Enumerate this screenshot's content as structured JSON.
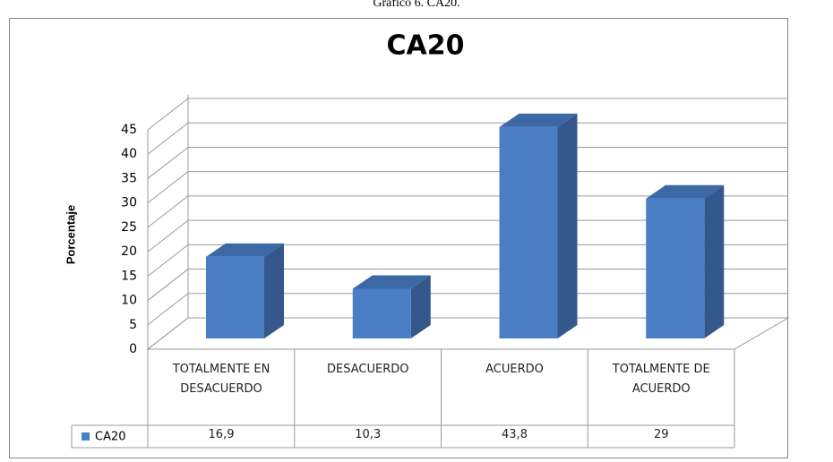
{
  "chart_data": {
    "type": "bar3d",
    "caption": "Gráfico 6. CA20.",
    "title": "CA20",
    "y_label": "Porcentaje",
    "categories": [
      "TOTALMENTE EN DESACUERDO",
      "DESACUERDO",
      "ACUERDO",
      "TOTALMENTE DE ACUERDO"
    ],
    "series": [
      {
        "name": "CA20",
        "color": "#4a7ec4",
        "values": [
          16.9,
          10.3,
          43.8,
          29
        ],
        "value_labels": [
          "16,9",
          "10,3",
          "43,8",
          "29"
        ]
      }
    ],
    "ylim": [
      0,
      45
    ],
    "yticks": [
      0,
      5,
      10,
      15,
      20,
      25,
      30,
      35,
      40,
      45
    ],
    "grid": true,
    "legend": "table"
  }
}
